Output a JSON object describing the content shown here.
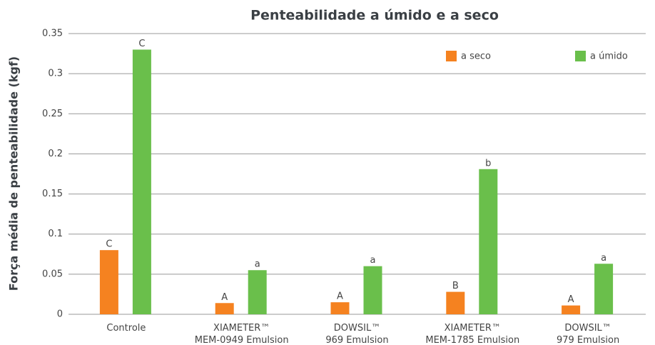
{
  "chart_data": {
    "type": "bar",
    "title": "Penteabilidade a úmido e a seco",
    "y_label": "Força média de penteabilidade (kgf)",
    "categories": [
      "Controle",
      "XIAMETER™\nMEM-0949 Emulsion",
      "DOWSIL™\n969 Emulsion",
      "XIAMETER™\nMEM-1785 Emulsion",
      "DOWSIL™\n979 Emulsion"
    ],
    "series": [
      {
        "name": "a seco",
        "color": "#f58220",
        "values": [
          0.08,
          0.014,
          0.015,
          0.028,
          0.011
        ],
        "labels": [
          "C",
          "A",
          "A",
          "B",
          "A"
        ]
      },
      {
        "name": "a úmido",
        "color": "#6abf4b",
        "values": [
          0.33,
          0.055,
          0.06,
          0.181,
          0.063
        ],
        "labels": [
          "C",
          "a",
          "a",
          "b",
          "a"
        ]
      }
    ],
    "ylim": [
      0,
      0.35
    ],
    "yticks": [
      0,
      0.05,
      0.1,
      0.15,
      0.2,
      0.25,
      0.3,
      0.35
    ],
    "grid": true,
    "legend": "top-right"
  }
}
